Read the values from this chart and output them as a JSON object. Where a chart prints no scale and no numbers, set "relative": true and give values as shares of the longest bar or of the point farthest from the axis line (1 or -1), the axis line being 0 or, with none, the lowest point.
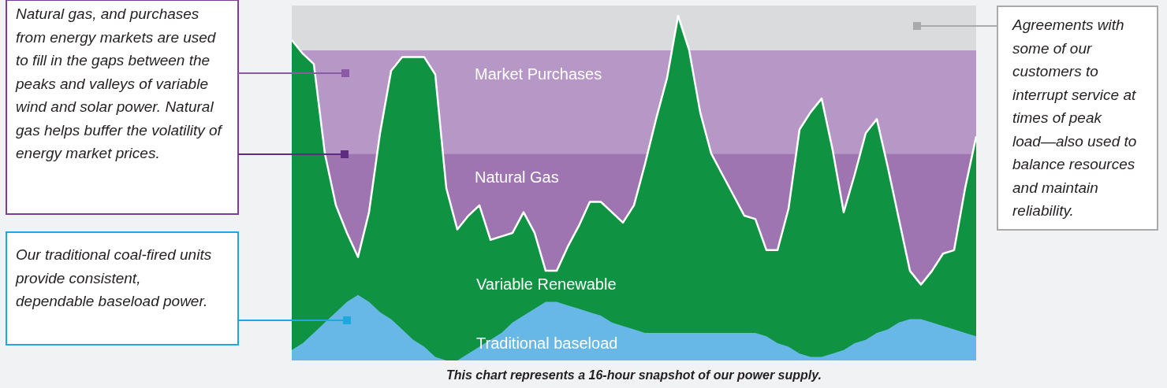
{
  "chart_data": {
    "type": "area",
    "relative": true,
    "categories": [
      null,
      null,
      null,
      null,
      null,
      null,
      null,
      null,
      null,
      null,
      null,
      null,
      null,
      null,
      null,
      null,
      null,
      null,
      null,
      null,
      null,
      null,
      null,
      null,
      null,
      null,
      null,
      null,
      null,
      null,
      null,
      null,
      null,
      null,
      null,
      null,
      null,
      null,
      null,
      null,
      null,
      null,
      null,
      null,
      null,
      null,
      null,
      null,
      null,
      null,
      null,
      null,
      null,
      null,
      null,
      null,
      null,
      null,
      null,
      null,
      null,
      null,
      null
    ],
    "series": [
      {
        "name": "Variable Renewable",
        "color": "#0f9342",
        "values": [
          0.93,
          0.89,
          0.86,
          0.6,
          0.45,
          0.37,
          0.3,
          0.43,
          0.66,
          0.84,
          0.88,
          0.88,
          0.88,
          0.83,
          0.5,
          0.38,
          0.42,
          0.45,
          0.35,
          0.36,
          0.37,
          0.43,
          0.37,
          0.26,
          0.26,
          0.33,
          0.39,
          0.46,
          0.46,
          0.43,
          0.4,
          0.45,
          0.57,
          0.7,
          0.82,
          1.0,
          0.9,
          0.72,
          0.6,
          0.54,
          0.48,
          0.42,
          0.41,
          0.32,
          0.32,
          0.44,
          0.67,
          0.72,
          0.76,
          0.61,
          0.43,
          0.54,
          0.66,
          0.7,
          0.56,
          0.41,
          0.26,
          0.22,
          0.26,
          0.31,
          0.32,
          0.5,
          0.65
        ]
      },
      {
        "name": "Traditional baseload",
        "color": "#67b8e6",
        "values": [
          0.03,
          0.05,
          0.08,
          0.11,
          0.14,
          0.17,
          0.19,
          0.17,
          0.14,
          0.12,
          0.09,
          0.06,
          0.04,
          0.01,
          0,
          0,
          0.02,
          0.04,
          0.06,
          0.08,
          0.11,
          0.13,
          0.15,
          0.17,
          0.17,
          0.16,
          0.15,
          0.14,
          0.13,
          0.11,
          0.1,
          0.09,
          0.08,
          0.08,
          0.08,
          0.08,
          0.08,
          0.08,
          0.08,
          0.08,
          0.08,
          0.08,
          0.08,
          0.07,
          0.05,
          0.04,
          0.02,
          0.01,
          0.01,
          0.02,
          0.03,
          0.05,
          0.06,
          0.08,
          0.09,
          0.11,
          0.12,
          0.12,
          0.11,
          0.1,
          0.09,
          0.08,
          0.07
        ]
      }
    ],
    "bands": [
      {
        "axis": "y",
        "from": 0,
        "to": 0.6,
        "label": "Natural Gas",
        "color": "#9f75b1"
      },
      {
        "axis": "y",
        "from": 0.6,
        "to": 0.9,
        "label": "Market Purchases",
        "color": "#b697c6"
      },
      {
        "axis": "y",
        "from": 0.9,
        "to": 1.03,
        "label": null,
        "color": "#dadbdd"
      }
    ],
    "annotations": [
      "Natural gas, and purchases from energy markets are used to fill in the gaps between the peaks and valleys of variable wind and solar power. Natural gas helps buffer the volatility of energy market prices.",
      "Our traditional coal-fired units provide consistent, dependable baseload power.",
      "Agreements with some of our customers to interrupt service at times of peak load—also used to balance resources and maintain reliability.",
      "This chart represents a 16-hour snapshot of our power supply."
    ]
  }
}
